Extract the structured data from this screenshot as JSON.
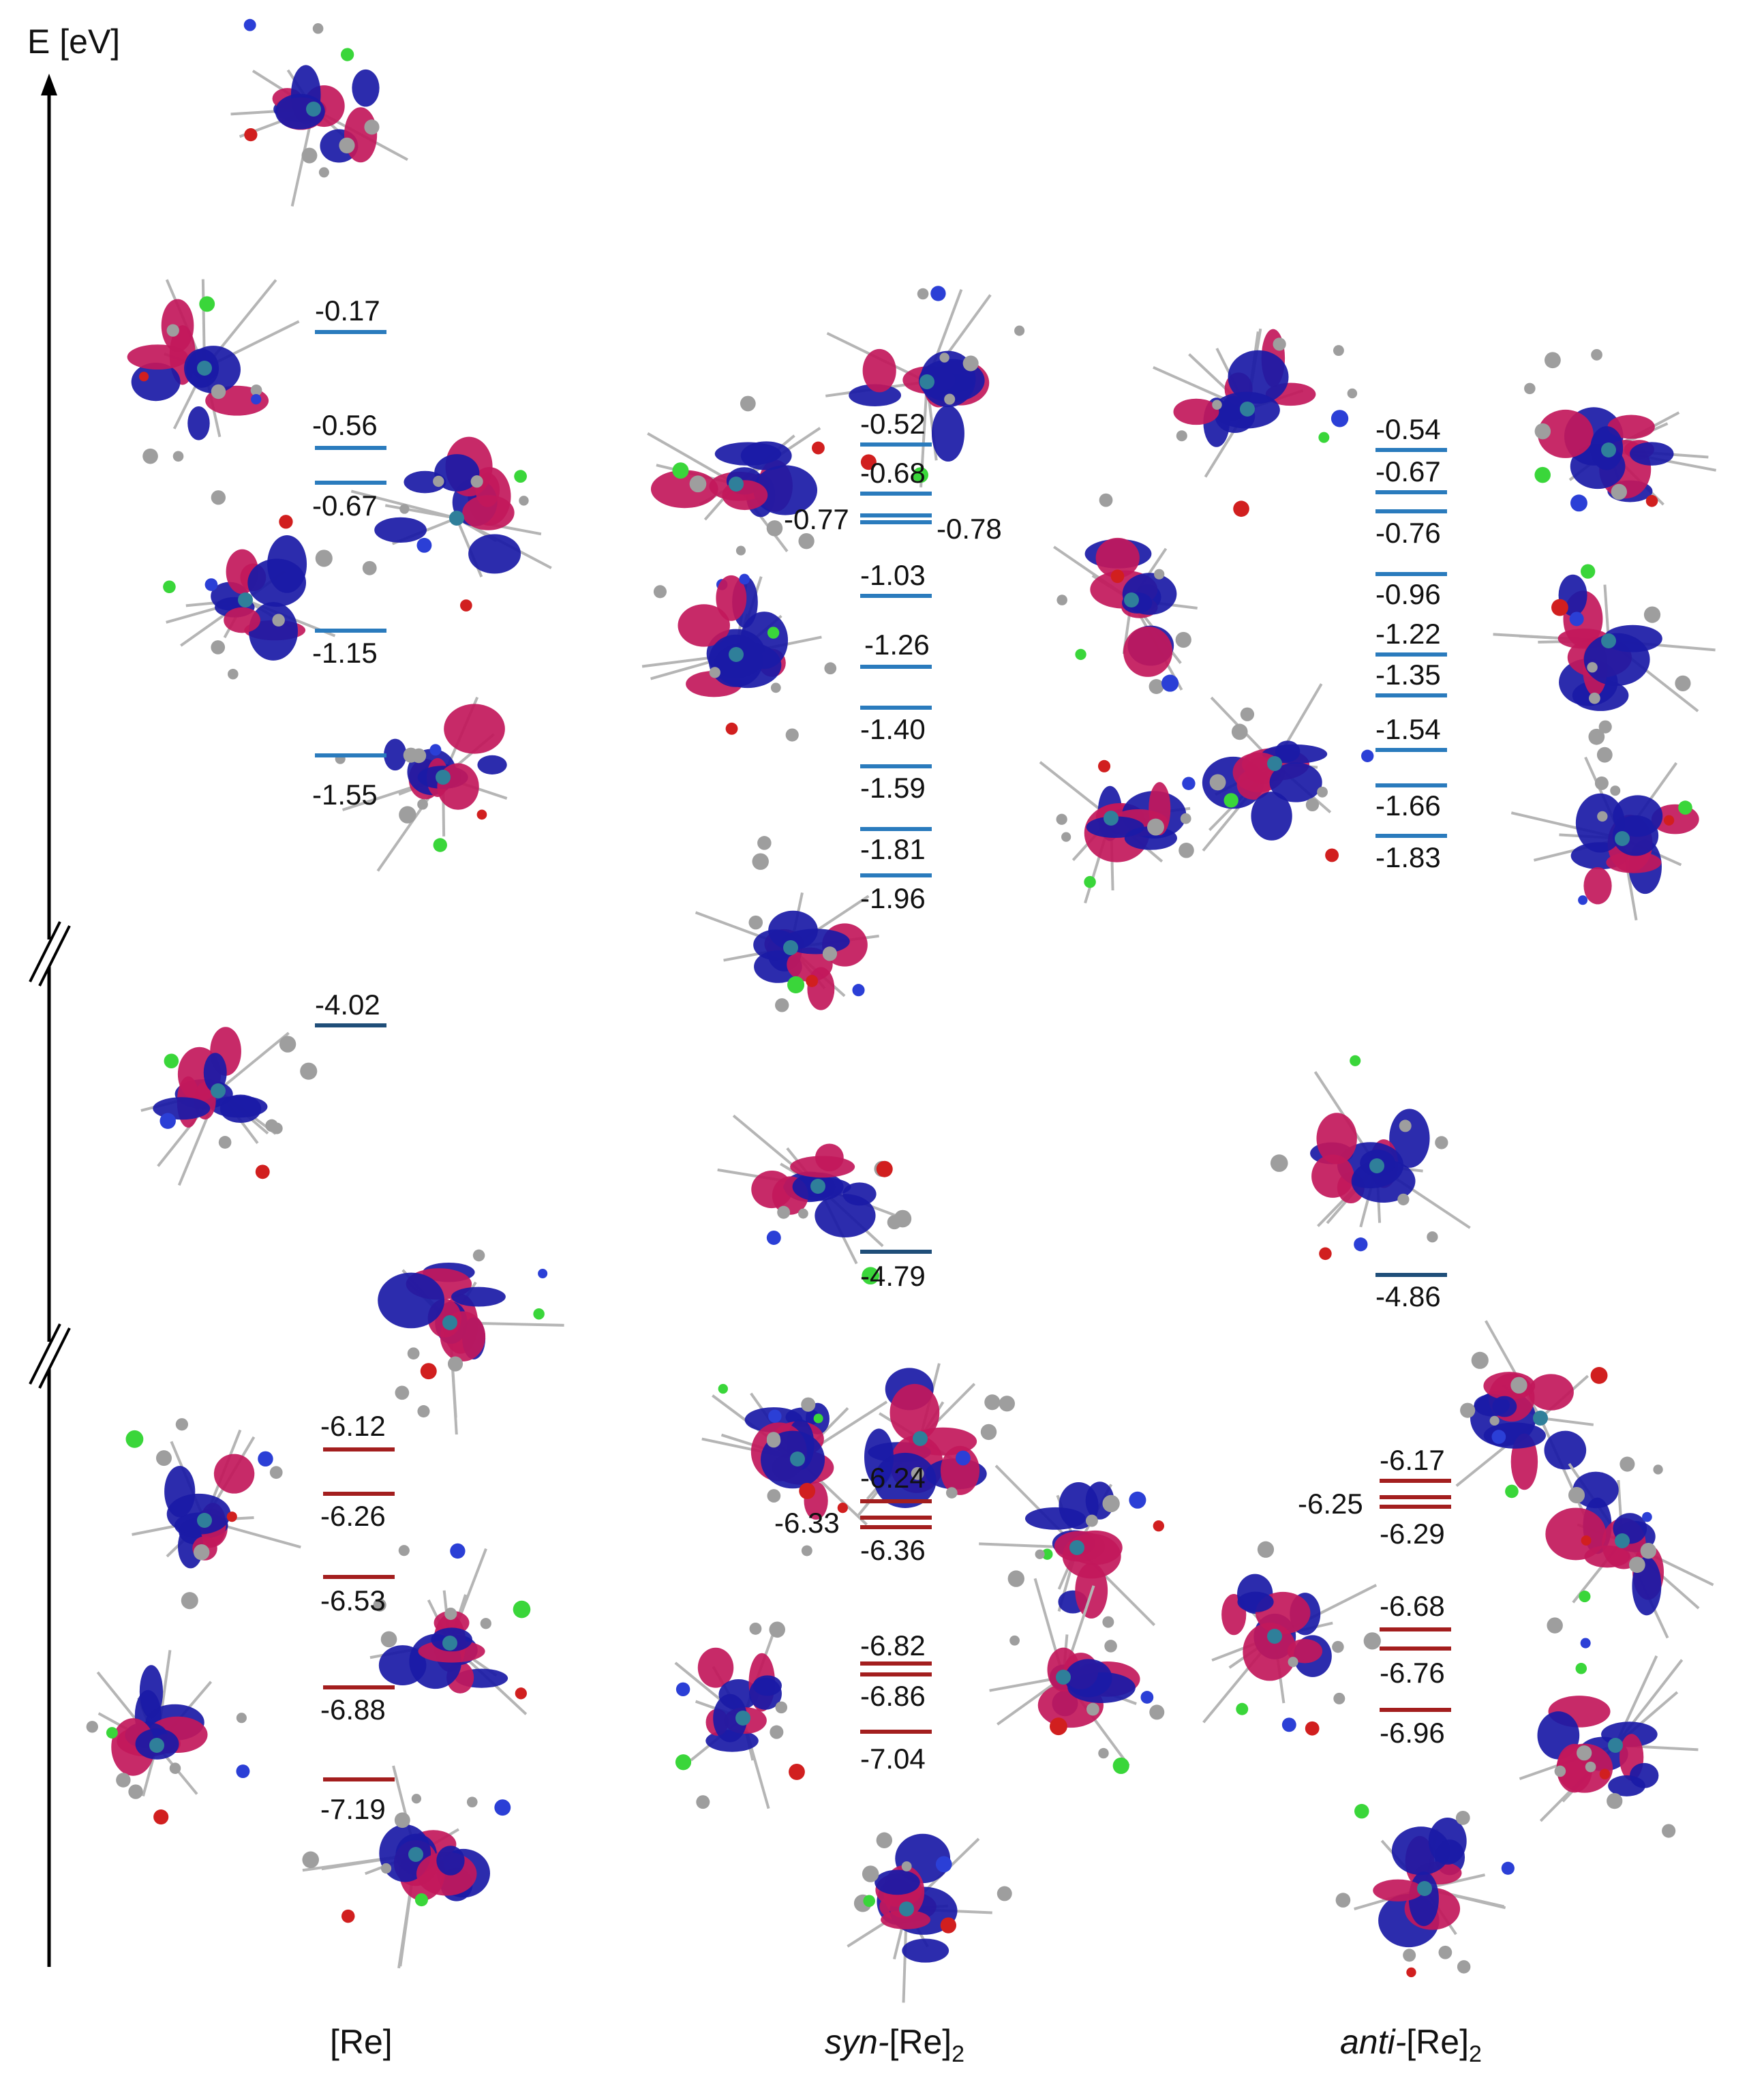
{
  "axis": {
    "label": "E [eV]"
  },
  "columns": [
    {
      "key": "re",
      "label": "[Re]",
      "prefix": "",
      "suffix": ""
    },
    {
      "key": "syn",
      "label": "[Re]",
      "prefix": "syn-",
      "suffix": "2"
    },
    {
      "key": "anti",
      "label": "[Re]",
      "prefix": "anti-",
      "suffix": "2"
    }
  ],
  "colors": {
    "unoccupied": "#2a7bbd",
    "lumo": "#1f4e79",
    "occupied": "#a31e1e",
    "lobe_positive": "#c2185b",
    "lobe_negative": "#1a1aa6",
    "atom_c": "#9e9e9e",
    "atom_n": "#2b3fd6",
    "atom_o": "#d11f1f",
    "atom_cl": "#3ad63a",
    "atom_re": "#2f7f9a"
  },
  "levels": {
    "re": {
      "unoccupied": [
        "-0.17",
        "-0.56",
        "-0.67",
        "-1.15",
        "-1.55"
      ],
      "lumo": [
        "-4.02"
      ],
      "occupied": [
        "-6.12",
        "-6.26",
        "-6.53",
        "-6.88",
        "-7.19"
      ]
    },
    "syn": {
      "unoccupied": [
        "-0.52",
        "-0.68",
        "-0.77",
        "-0.78",
        "-1.03",
        "-1.26",
        "-1.40",
        "-1.59",
        "-1.81",
        "-1.96"
      ],
      "lumo": [
        "-4.79"
      ],
      "occupied": [
        "-6.24",
        "-6.33",
        "-6.36",
        "-6.82",
        "-6.86",
        "-7.04"
      ]
    },
    "anti": {
      "unoccupied": [
        "-0.54",
        "-0.67",
        "-0.76",
        "-0.96",
        "-1.22",
        "-1.35",
        "-1.54",
        "-1.66",
        "-1.83"
      ],
      "lumo": [
        "-4.86"
      ],
      "occupied": [
        "-6.17",
        "-6.25",
        "-6.29",
        "-6.68",
        "-6.76",
        "-6.96"
      ]
    }
  }
}
